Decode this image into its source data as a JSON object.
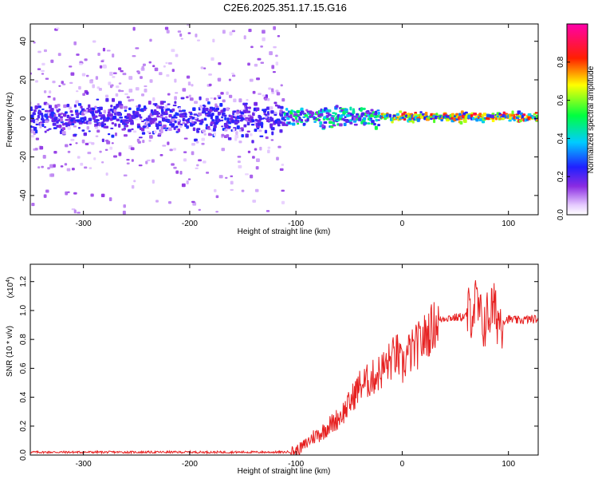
{
  "title": "C2E6.2025.351.17.15.G16",
  "colors": {
    "snr_line": "#e62020",
    "background": "#ffffff",
    "axis": "#000000"
  },
  "chart_data": [
    {
      "type": "heatmap",
      "name": "spectrogram",
      "xlabel": "Height of straight line (km)",
      "ylabel": "Frequency (Hz)",
      "xlim": [
        -350,
        128
      ],
      "ylim": [
        -50,
        49
      ],
      "xticks": [
        -300,
        -200,
        -100,
        0,
        100
      ],
      "xtick_labels": [
        "-300",
        "-200",
        "-100",
        "0",
        "100"
      ],
      "yticks": [
        -40,
        -20,
        0,
        20,
        40
      ],
      "ytick_labels": [
        "-40",
        "-20",
        "0",
        "20",
        "40"
      ],
      "colorbar": {
        "label": "Normalized spectral amplitude",
        "range": [
          0,
          1
        ],
        "ticks": [
          0.0,
          0.2,
          0.4,
          0.6,
          0.8
        ],
        "tick_labels": [
          "0.0",
          "0.2",
          "0.4",
          "0.6",
          "0.8"
        ],
        "colormap": "rainbow (white-violet-blue-cyan-green-yellow-red-magenta)"
      },
      "description_regions": [
        {
          "x_range": [
            -350,
            -110
          ],
          "freq_spread": 45,
          "core_band": [
            -8,
            8
          ],
          "amplitude": "low (0.05-0.25)"
        },
        {
          "x_range": [
            -110,
            -20
          ],
          "freq_spread": 8,
          "core_band": [
            -3,
            5
          ],
          "amplitude": "medium (0.2-0.55)"
        },
        {
          "x_range": [
            -20,
            128
          ],
          "freq_spread": 3,
          "core_band": [
            -0.5,
            1.5
          ],
          "amplitude": "high (0.5-0.95)"
        }
      ]
    },
    {
      "type": "line",
      "name": "snr",
      "xlabel": "Height of straight line (km)",
      "ylabel": "SNR (10 * v/v)",
      "y_multiplier": "(x10",
      "y_multiplier_exp": "4",
      "y_multiplier_close": ")",
      "xlim": [
        -350,
        128
      ],
      "ylim": [
        0,
        1.32
      ],
      "xticks": [
        -300,
        -200,
        -100,
        0,
        100
      ],
      "xtick_labels": [
        "-300",
        "-200",
        "-100",
        "0",
        "100"
      ],
      "yticks": [
        0.0,
        0.2,
        0.4,
        0.6,
        0.8,
        1.0,
        1.2
      ],
      "ytick_labels": [
        "0.0",
        "0.2",
        "0.4",
        "0.6",
        "0.8",
        "1.0",
        "1.2"
      ],
      "series": [
        {
          "name": "SNR",
          "x": [
            -350,
            -300,
            -250,
            -200,
            -150,
            -110,
            -100,
            -95,
            -90,
            -85,
            -80,
            -75,
            -70,
            -65,
            -60,
            -55,
            -50,
            -45,
            -40,
            -35,
            -30,
            -25,
            -20,
            -15,
            -10,
            -5,
            0,
            5,
            10,
            15,
            20,
            25,
            30,
            35,
            40,
            50,
            60,
            65,
            70,
            75,
            80,
            85,
            90,
            95,
            100,
            110,
            120,
            128
          ],
          "y": [
            0.02,
            0.02,
            0.02,
            0.02,
            0.02,
            0.02,
            0.03,
            0.05,
            0.08,
            0.12,
            0.14,
            0.16,
            0.2,
            0.22,
            0.26,
            0.3,
            0.35,
            0.42,
            0.48,
            0.5,
            0.52,
            0.55,
            0.58,
            0.62,
            0.66,
            0.7,
            0.6,
            0.7,
            0.72,
            0.76,
            0.8,
            0.85,
            0.9,
            0.93,
            0.95,
            0.95,
            0.96,
            1.0,
            1.05,
            0.9,
            0.95,
            1.02,
            0.95,
            0.93,
            0.94,
            0.93,
            0.94,
            0.94
          ]
        }
      ]
    }
  ]
}
